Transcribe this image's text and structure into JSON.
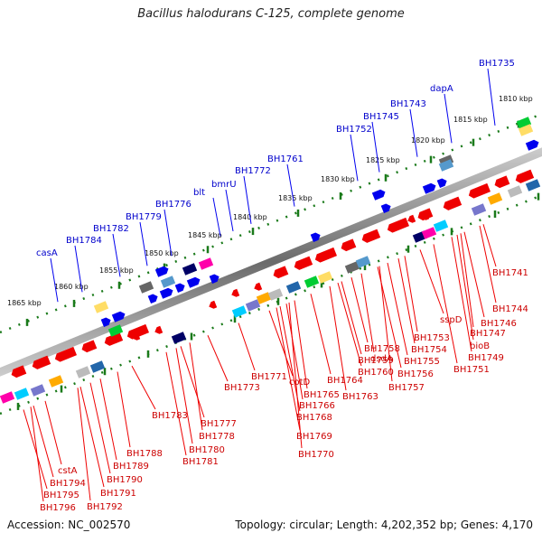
{
  "title": "Bacillus halodurans C-125, complete genome",
  "footer": {
    "accession": "Accession: NC_002570",
    "summary": "Topology: circular; Length: 4,202,352 bp; Genes: 4,170"
  },
  "kbp_ticks": [
    "1810 kbp",
    "1815 kbp",
    "1820 kbp",
    "1825 kbp",
    "1830 kbp",
    "1835 kbp",
    "1840 kbp",
    "1845 kbp",
    "1850 kbp",
    "1855 kbp",
    "1860 kbp",
    "1865 kbp"
  ],
  "upper_labels": [
    "BH1735",
    "dapA",
    "BH1743",
    "BH1745",
    "BH1752",
    "BH1761",
    "BH1772",
    "bmrU",
    "blt",
    "BH1776",
    "BH1779",
    "BH1782",
    "BH1784",
    "casA"
  ],
  "lower_labels": [
    "BH1741",
    "BH1744",
    "BH1746",
    "sspD",
    "BH1747",
    "bioB",
    "BH1749",
    "BH1751",
    "BH1753",
    "BH1754",
    "BH1755",
    "BH1756",
    "BH1757",
    "BH1758",
    "BH1759",
    "BH1760",
    "dsdA",
    "BH1763",
    "BH1764",
    "cotD",
    "BH1765",
    "BH1766",
    "BH1768",
    "BH1769",
    "BH1770",
    "BH1771",
    "BH1773",
    "BH1777",
    "BH1778",
    "BH1780",
    "BH1781",
    "BH1783",
    "BH1788",
    "BH1789",
    "BH1790",
    "BH1791",
    "BH1792",
    "cstA",
    "BH1794",
    "BH1795",
    "BH1796"
  ],
  "colors": {
    "forward_gene": "#0000ee",
    "reverse_gene": "#ee0000",
    "backbone": "#888888",
    "tick": "#1a7a1a",
    "upper_label": "#0000cc",
    "lower_label": "#cc0000"
  }
}
